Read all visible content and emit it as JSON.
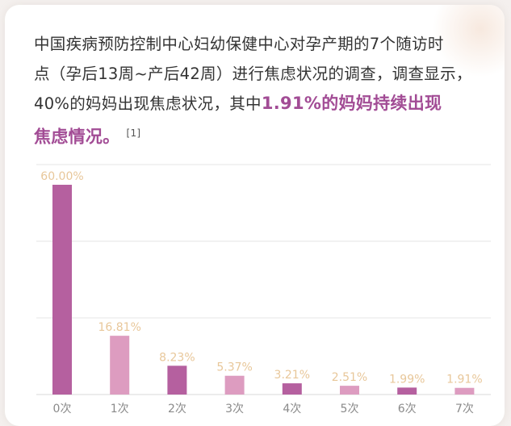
{
  "text": {
    "line1": "中国疾病预防控制中心妇幼保健中心对孕产期的7个随访时",
    "line2": "点（孕后13周~产后42周）进行焦虑状况的调查，调查显示，",
    "line3_plain": "40%的妈妈出现焦虑状况，其中",
    "line3_highlight": "1.91%的妈妈持续出现",
    "line4_highlight": "焦虑情况。",
    "citation": "[1]"
  },
  "colors": {
    "dark_bar": "#b5609f",
    "light_bar": "#dd9cc0",
    "highlight_text": "#a24c95",
    "value_label": "#e8c79a",
    "tick_label": "#8a8a8a"
  },
  "chart_data": {
    "type": "bar",
    "categories": [
      "0次",
      "1次",
      "2次",
      "3次",
      "4次",
      "5次",
      "6次",
      "7次"
    ],
    "values": [
      60.0,
      16.81,
      8.23,
      5.37,
      3.21,
      2.51,
      1.99,
      1.91
    ],
    "value_labels": [
      "60.00%",
      "16.81%",
      "8.23%",
      "5.37%",
      "3.21%",
      "2.51%",
      "1.99%",
      "1.91%"
    ],
    "bar_color_pattern": [
      "dark",
      "light",
      "dark",
      "light",
      "dark",
      "light",
      "dark",
      "light"
    ],
    "ylim": [
      0,
      60
    ],
    "grid": true,
    "title": "",
    "xlabel": "",
    "ylabel": ""
  }
}
